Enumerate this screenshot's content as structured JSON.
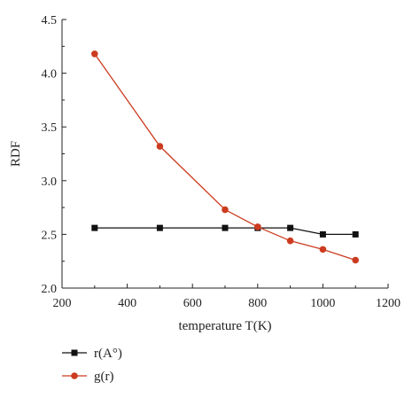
{
  "chart_data": {
    "type": "line",
    "title": "",
    "xlabel": "temperature T(K)",
    "ylabel": "RDF",
    "xlim": [
      200,
      1200
    ],
    "ylim": [
      2.0,
      4.5
    ],
    "xticks": [
      "200",
      "400",
      "600",
      "800",
      "1000",
      "1200"
    ],
    "yticks": [
      "2.0",
      "2.5",
      "3.0",
      "3.5",
      "4.0",
      "4.5"
    ],
    "grid": false,
    "legend_position": "bottom-left",
    "series": [
      {
        "name": "r(A°)",
        "color": "#111111",
        "marker": "square",
        "x": [
          300,
          500,
          700,
          800,
          900,
          1000,
          1100
        ],
        "y": [
          2.56,
          2.56,
          2.56,
          2.56,
          2.56,
          2.5,
          2.5
        ]
      },
      {
        "name": "g(r)",
        "color": "#cc3b1f",
        "marker": "circle",
        "x": [
          300,
          500,
          700,
          800,
          900,
          1000,
          1100
        ],
        "y": [
          4.18,
          3.32,
          2.73,
          2.57,
          2.44,
          2.36,
          2.26
        ]
      }
    ]
  }
}
